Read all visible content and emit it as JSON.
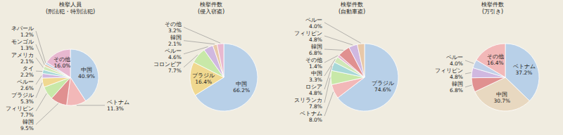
{
  "chart_data": [
    {
      "type": "pie",
      "title": "検挙人員\n(刑法犯・特別法犯)",
      "categories": [
        "中国",
        "ベトナム",
        "韓国",
        "フィリピン",
        "ブラジル",
        "ペルー",
        "タイ",
        "アメリカ",
        "モンゴル",
        "ネパール",
        "その他"
      ],
      "values": [
        40.9,
        11.3,
        9.5,
        7.7,
        5.3,
        2.6,
        2.2,
        2.1,
        1.3,
        1.2,
        16.0
      ],
      "value_labels": [
        "40.9%",
        "11.3%",
        "9.5%",
        "7.7%",
        "5.3%",
        "2.6%",
        "2.2%",
        "2.1%",
        "1.3%",
        "1.2%",
        "16.0%"
      ],
      "colors": [
        "#b8d0e8",
        "#f2b8b8",
        "#e09090",
        "#c8e8a8",
        "#f0d890",
        "#d0b8e0",
        "#a8d8d8",
        "#d0e8b8",
        "#e8c8a8",
        "#c0d0e8",
        "#e8b8d0"
      ],
      "data_labels": true
    },
    {
      "type": "pie",
      "title": "検挙件数\n(侵入窃盗)",
      "categories": [
        "中国",
        "ブラジル",
        "コロンビア",
        "ペルー",
        "韓国",
        "その他"
      ],
      "values": [
        66.2,
        16.4,
        7.7,
        4.6,
        2.1,
        3.2
      ],
      "value_labels": [
        "66.2%",
        "16.4%",
        "7.7%",
        "4.6%",
        "2.1%",
        "3.2%"
      ],
      "colors": [
        "#b8d0e8",
        "#f0d890",
        "#c8e8a8",
        "#d0b8e0",
        "#e8c8a8",
        "#e8b8d0"
      ],
      "data_labels": true
    },
    {
      "type": "pie",
      "title": "検挙件数\n(自動車盗)",
      "categories": [
        "ブラジル",
        "ベトナム",
        "スリランカ",
        "ロシア",
        "中国",
        "その他",
        "韓国",
        "フィリピン",
        "ペルー"
      ],
      "values": [
        74.6,
        8.0,
        7.8,
        4.8,
        3.3,
        1.4,
        6.8,
        4.8,
        4.0
      ],
      "value_labels": [
        "74.6%",
        "8.0%",
        "7.8%",
        "4.8%",
        "3.3%",
        "1.4%",
        "6.8%",
        "4.8%",
        "4.0%"
      ],
      "colors": [
        "#b8d0e8",
        "#f2b8b8",
        "#c8e8a8",
        "#a8d8d8",
        "#d0e8b8",
        "#e8b8d0",
        "#e09090",
        "#d0b8e0",
        "#e8c8a8"
      ],
      "data_labels": true
    },
    {
      "type": "pie",
      "title": "検挙件数\n(万引き)",
      "categories": [
        "ベトナム",
        "中国",
        "韓国",
        "フィリピン",
        "ペルー",
        "その他"
      ],
      "values": [
        37.2,
        30.7,
        6.8,
        4.8,
        4.0,
        16.4
      ],
      "value_labels": [
        "37.2%",
        "30.7%",
        "6.8%",
        "4.8%",
        "4.0%",
        "16.4%"
      ],
      "colors": [
        "#b8d0e8",
        "#e8d8c0",
        "#e09090",
        "#d0b8e0",
        "#c0d0e8",
        "#f2b8b8"
      ],
      "data_labels": true
    }
  ]
}
